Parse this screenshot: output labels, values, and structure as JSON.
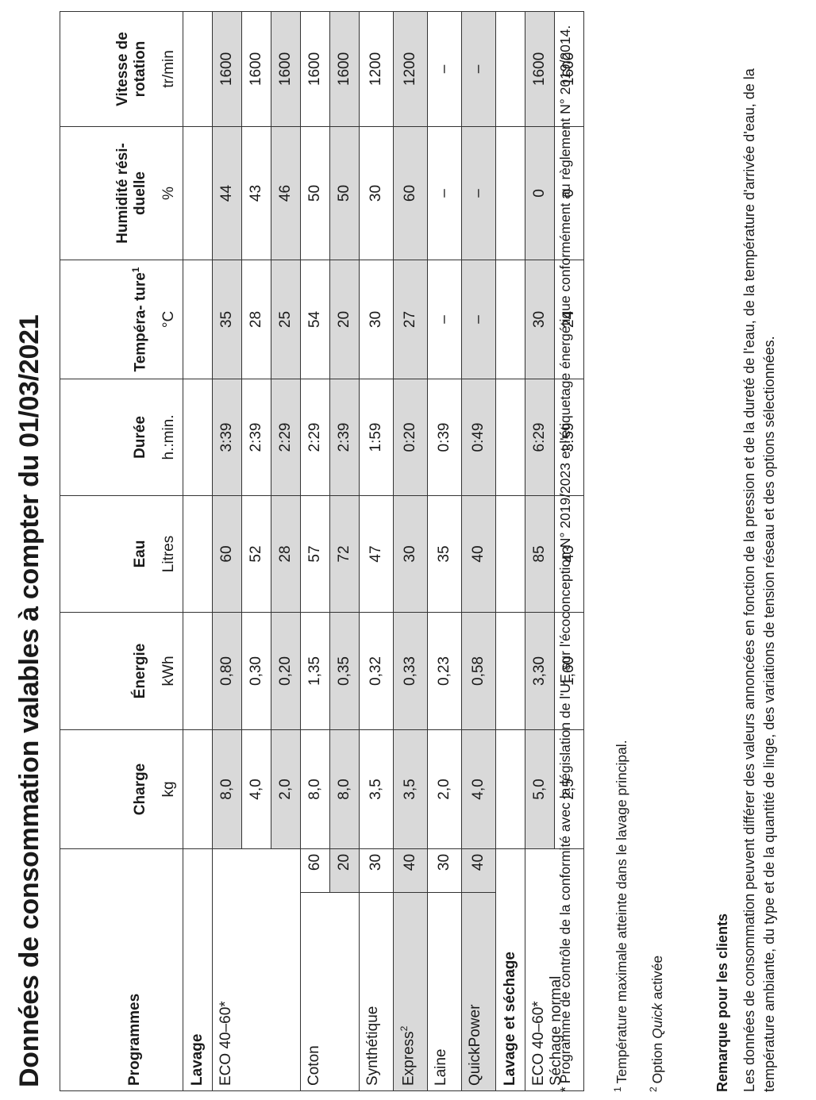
{
  "title": "Données de consommation valables à compter du 01/03/2021",
  "table": {
    "header": [
      {
        "label": "Programmes"
      },
      {
        "label": "Charge",
        "unit": "kg"
      },
      {
        "label": "Énergie",
        "unit": "kWh"
      },
      {
        "label": "Eau",
        "unit": "Litres"
      },
      {
        "label": "Durée",
        "unit": "h.:min."
      },
      {
        "label": "Tempéra- ture",
        "sup": "1",
        "unit": "°C"
      },
      {
        "label": "Humidité rési- duelle",
        "unit": "%"
      },
      {
        "label": "Vitesse de rotation",
        "unit": "tr/min"
      }
    ],
    "sections": [
      {
        "title": "Lavage",
        "groups": [
          {
            "name": [
              "ECO 40–60*"
            ],
            "rows": [
              {
                "values": [
                  "8,0",
                  "0,80",
                  "60",
                  "3:39",
                  "35",
                  "44",
                  "1600"
                ],
                "shaded": true
              },
              {
                "values": [
                  "4,0",
                  "0,30",
                  "52",
                  "2:39",
                  "28",
                  "43",
                  "1600"
                ],
                "shaded": false
              },
              {
                "values": [
                  "2,0",
                  "0,20",
                  "28",
                  "2:29",
                  "25",
                  "46",
                  "1600"
                ],
                "shaded": true
              }
            ]
          },
          {
            "name": [
              "Coton"
            ],
            "rows": [
              {
                "num": "60",
                "values": [
                  "8,0",
                  "1,35",
                  "57",
                  "2:29",
                  "54",
                  "50",
                  "1600"
                ],
                "shaded": false
              },
              {
                "num": "20",
                "values": [
                  "8,0",
                  "0,35",
                  "72",
                  "2:39",
                  "20",
                  "50",
                  "1600"
                ],
                "shaded": true
              }
            ]
          },
          {
            "name": [
              "Synthétique"
            ],
            "rows": [
              {
                "num": "30",
                "values": [
                  "3,5",
                  "0,32",
                  "47",
                  "1:59",
                  "30",
                  "30",
                  "1200"
                ],
                "shaded": false
              }
            ]
          },
          {
            "name": [
              "Express"
            ],
            "sup": "2",
            "rows": [
              {
                "num": "40",
                "values": [
                  "3,5",
                  "0,33",
                  "30",
                  "0:20",
                  "27",
                  "60",
                  "1200"
                ],
                "shaded": true
              }
            ]
          },
          {
            "name": [
              "Laine"
            ],
            "rows": [
              {
                "num": "30",
                "values": [
                  "2,0",
                  "0,23",
                  "35",
                  "0:39",
                  "–",
                  "–",
                  "–"
                ],
                "shaded": false
              }
            ]
          },
          {
            "name": [
              "QuickPower"
            ],
            "rows": [
              {
                "num": "40",
                "values": [
                  "4,0",
                  "0,58",
                  "40",
                  "0:49",
                  "–",
                  "–",
                  "–"
                ],
                "shaded": true
              }
            ]
          }
        ]
      },
      {
        "title": "Lavage et séchage",
        "groups": [
          {
            "name": [
              "ECO 40–60*",
              "Séchage normal"
            ],
            "rows": [
              {
                "values": [
                  "5,0",
                  "3,30",
                  "85",
                  "6:29",
                  "30",
                  "0",
                  "1600"
                ],
                "shaded": true
              },
              {
                "values": [
                  "2,5",
                  "1,60",
                  "43",
                  "3:59",
                  "24",
                  "0",
                  "1600"
                ],
                "shaded": false
              }
            ]
          }
        ]
      }
    ]
  },
  "footnotes": [
    {
      "mark": "*",
      "parts": [
        "Programme de contrôle de la conformité avec la législation de l'UE sur l'écoconception N° 2019/2023 et l'étiquetage énergétique conformément au règlement N° 2019/2014."
      ]
    },
    {
      "mark": "1",
      "parts": [
        "Température maximale atteinte dans le lavage principal."
      ]
    },
    {
      "mark": "2",
      "parts": [
        "Option ",
        "Quick",
        " activée"
      ]
    }
  ],
  "remark": {
    "title": "Remarque pour les clients",
    "text": "Les données de consommation peuvent différer des valeurs annoncées en fonction de la pression et de la dureté de l'eau, de la température d'arrivée d'eau, de la température ambiante, du type et de la quantité de linge, des variations de tension réseau et des options sélectionnées."
  }
}
